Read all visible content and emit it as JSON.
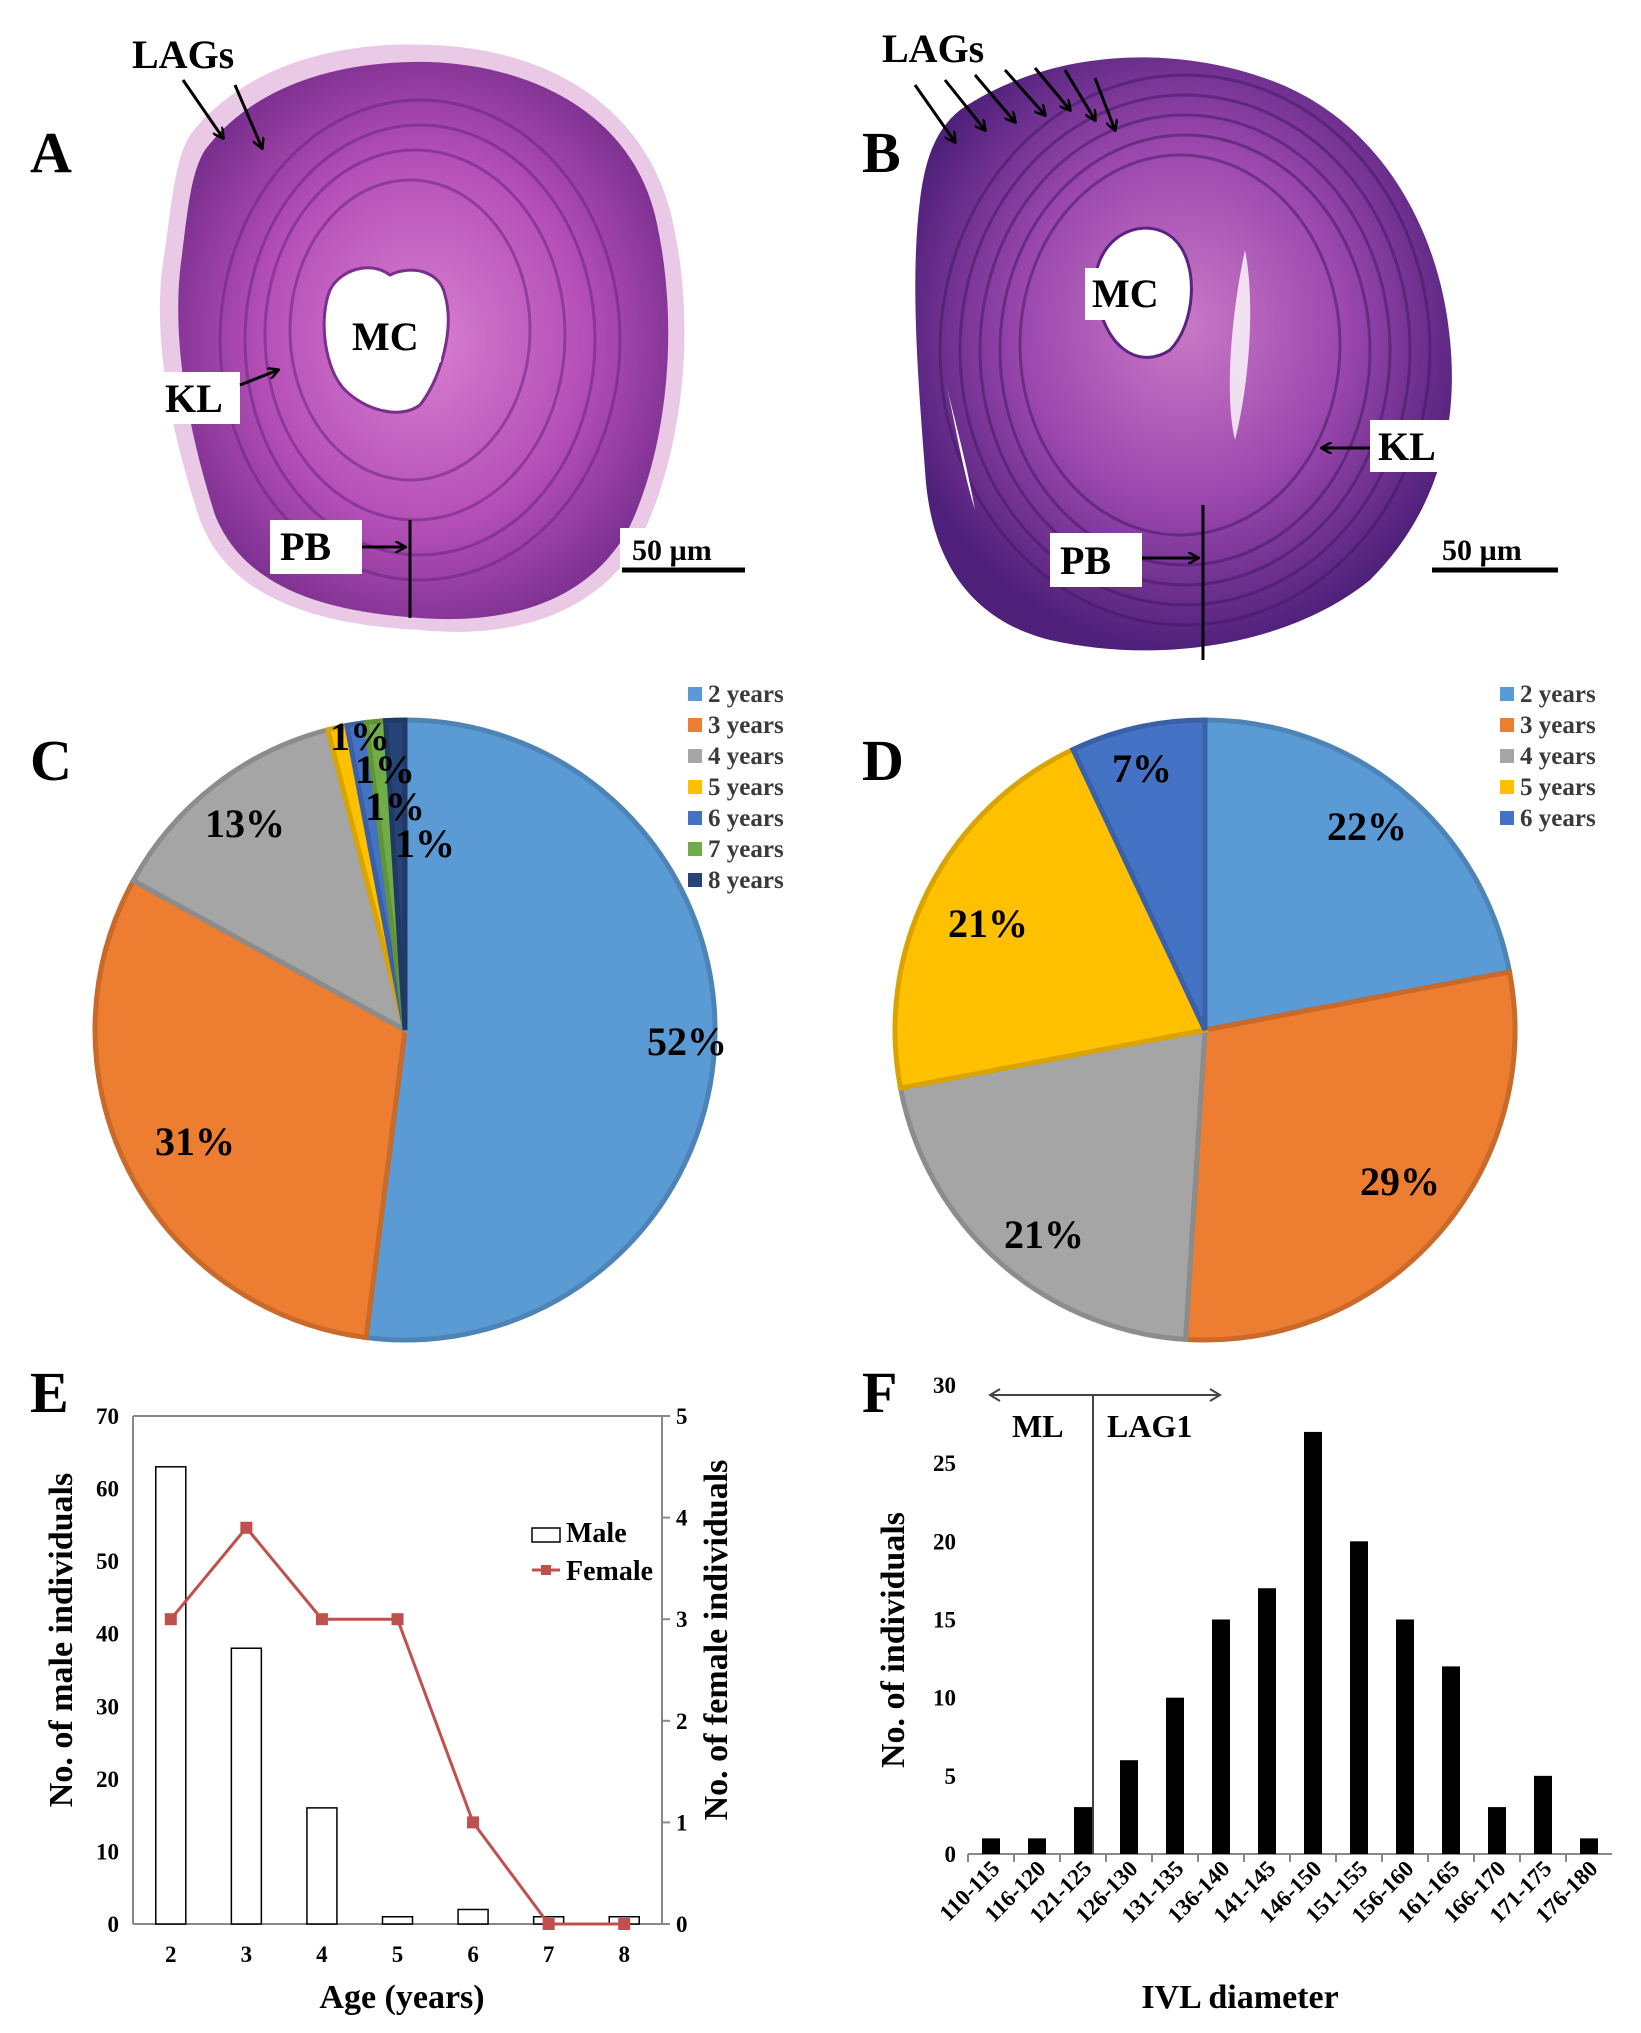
{
  "panels": {
    "A": {
      "letter": "A",
      "labels": {
        "lags": "LAGs",
        "mc": "MC",
        "kl": "KL",
        "pb": "PB",
        "scale": "50 µm"
      }
    },
    "B": {
      "letter": "B",
      "labels": {
        "lags": "LAGs",
        "mc": "MC",
        "kl": "KL",
        "pb": "PB",
        "scale": "50 µm"
      }
    }
  },
  "colors": {
    "y2": "#5B9BD5",
    "y3": "#ED7D31",
    "y4": "#A5A5A5",
    "y5": "#FFC000",
    "y6": "#4472C4",
    "y7": "#70AD47",
    "y8": "#264478",
    "female_line": "#C0504D",
    "bone": "#B04FB8",
    "bone_dark": "#6E2C8A"
  },
  "chart_data": [
    {
      "panel": "C",
      "type": "pie",
      "legend": [
        "2 years",
        "3 years",
        "4 years",
        "5 years",
        "6 years",
        "7 years",
        "8 years"
      ],
      "values": [
        52,
        31,
        13,
        1,
        1,
        1,
        1
      ],
      "labels": [
        "52%",
        "31%",
        "13%",
        "1%",
        "1%",
        "1%",
        "1%"
      ]
    },
    {
      "panel": "D",
      "type": "pie",
      "legend": [
        "2 years",
        "3 years",
        "4 years",
        "5 years",
        "6 years"
      ],
      "values": [
        22,
        29,
        21,
        21,
        7
      ],
      "labels": [
        "22%",
        "29%",
        "21%",
        "21%",
        "7%"
      ]
    },
    {
      "panel": "E",
      "type": "bar+line",
      "xlabel": "Age (years)",
      "ylabel_left": "No. of male individuals",
      "ylabel_right": "No. of female individuals",
      "categories": [
        "2",
        "3",
        "4",
        "5",
        "6",
        "7",
        "8"
      ],
      "ylim_left": [
        0,
        70
      ],
      "yticks_left": [
        "0",
        "10",
        "20",
        "30",
        "40",
        "50",
        "60",
        "70"
      ],
      "ylim_right": [
        0,
        5
      ],
      "yticks_right": [
        "0",
        "1",
        "2",
        "3",
        "4",
        "5"
      ],
      "series": [
        {
          "name": "Male",
          "type": "bar",
          "axis": "left",
          "values": [
            63,
            38,
            16,
            1,
            2,
            1,
            1
          ]
        },
        {
          "name": "Female",
          "type": "line",
          "axis": "right",
          "values": [
            3,
            3.9,
            3,
            3,
            1,
            0,
            0
          ]
        }
      ]
    },
    {
      "panel": "F",
      "type": "bar",
      "xlabel": "IVL diameter",
      "ylabel": "No. of individuals",
      "ylim": [
        0,
        30
      ],
      "yticks": [
        "0",
        "5",
        "10",
        "15",
        "20",
        "25",
        "30"
      ],
      "categories": [
        "110-115",
        "116-120",
        "121-125",
        "126-130",
        "131-135",
        "136-140",
        "141-145",
        "146-150",
        "151-155",
        "156-160",
        "161-165",
        "166-170",
        "171-175",
        "176-180"
      ],
      "values": [
        1,
        1,
        3,
        6,
        10,
        15,
        17,
        27,
        20,
        15,
        12,
        3,
        5,
        1
      ],
      "annotations": {
        "left": "ML",
        "right": "LAG1"
      }
    }
  ],
  "letters": {
    "C": "C",
    "D": "D",
    "E": "E",
    "F": "F"
  }
}
